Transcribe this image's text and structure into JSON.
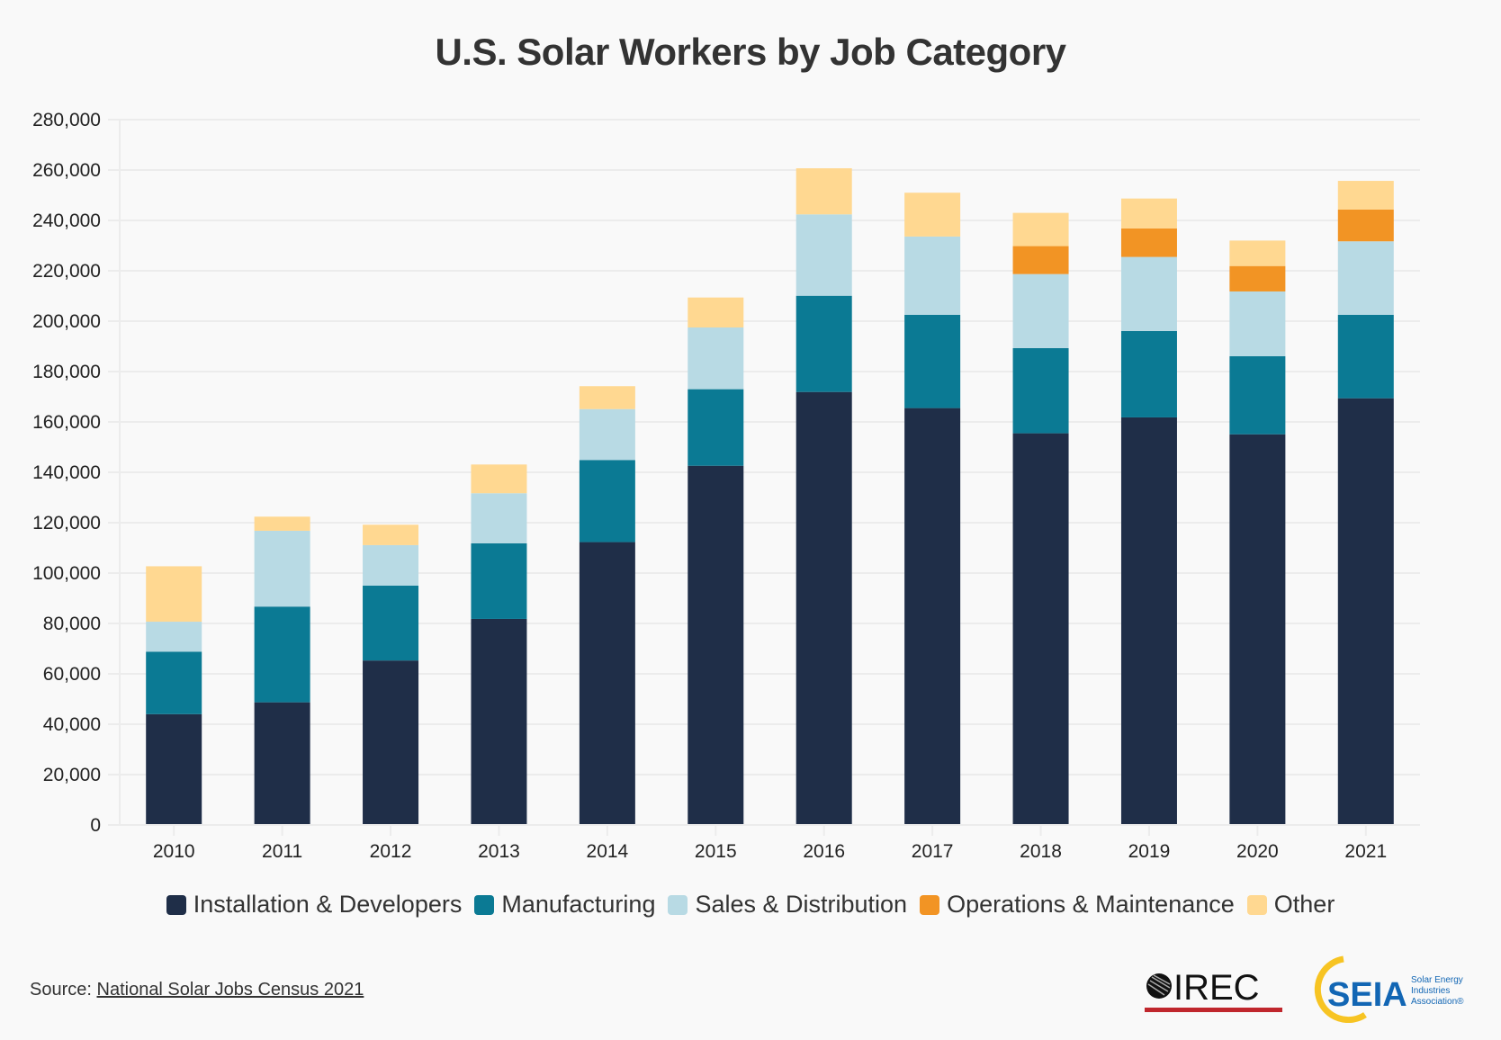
{
  "chart_data": {
    "type": "bar",
    "stacked": true,
    "title": "U.S. Solar Workers by Job Category",
    "xlabel": "",
    "ylabel": "",
    "ylim": [
      0,
      280000
    ],
    "yticks": [
      0,
      20000,
      40000,
      60000,
      80000,
      100000,
      120000,
      140000,
      160000,
      180000,
      200000,
      220000,
      240000,
      260000,
      280000
    ],
    "ytick_labels": [
      "0",
      "20,000",
      "40,000",
      "60,000",
      "80,000",
      "100,000",
      "120,000",
      "140,000",
      "160,000",
      "180,000",
      "200,000",
      "220,000",
      "240,000",
      "260,000",
      "280,000"
    ],
    "grid": true,
    "legend_position": "bottom",
    "categories": [
      "2010",
      "2011",
      "2012",
      "2013",
      "2014",
      "2015",
      "2016",
      "2017",
      "2018",
      "2019",
      "2020",
      "2021"
    ],
    "series": [
      {
        "name": "Installation & Developers",
        "color": "#1f2e48",
        "values": [
          44000,
          48700,
          65300,
          81800,
          112300,
          142600,
          171900,
          165500,
          155500,
          161800,
          155100,
          169400
        ]
      },
      {
        "name": "Manufacturing",
        "color": "#0b7a94",
        "values": [
          24800,
          38000,
          29700,
          30000,
          32600,
          30400,
          38200,
          37000,
          33800,
          34300,
          31000,
          33100
        ]
      },
      {
        "name": "Sales & Distribution",
        "color": "#b8dae4",
        "values": [
          11900,
          30100,
          16100,
          19900,
          20200,
          24500,
          32300,
          31100,
          29400,
          29400,
          25700,
          29200
        ]
      },
      {
        "name": "Operations & Maintenance",
        "color": "#f29424",
        "values": [
          0,
          0,
          0,
          0,
          0,
          0,
          0,
          0,
          11100,
          11300,
          10100,
          12600
        ]
      },
      {
        "name": "Other",
        "color": "#ffd891",
        "values": [
          22000,
          5600,
          8100,
          11400,
          9100,
          11900,
          18300,
          17400,
          13200,
          11900,
          10100,
          11400
        ]
      }
    ]
  },
  "footer": {
    "source_label": "Source:",
    "source_link": "National Solar Jobs Census 2021"
  },
  "logos": {
    "irec": "IREC",
    "seia": "SEIA",
    "seia_sub": [
      "Solar Energy",
      "Industries",
      "Association®"
    ]
  }
}
